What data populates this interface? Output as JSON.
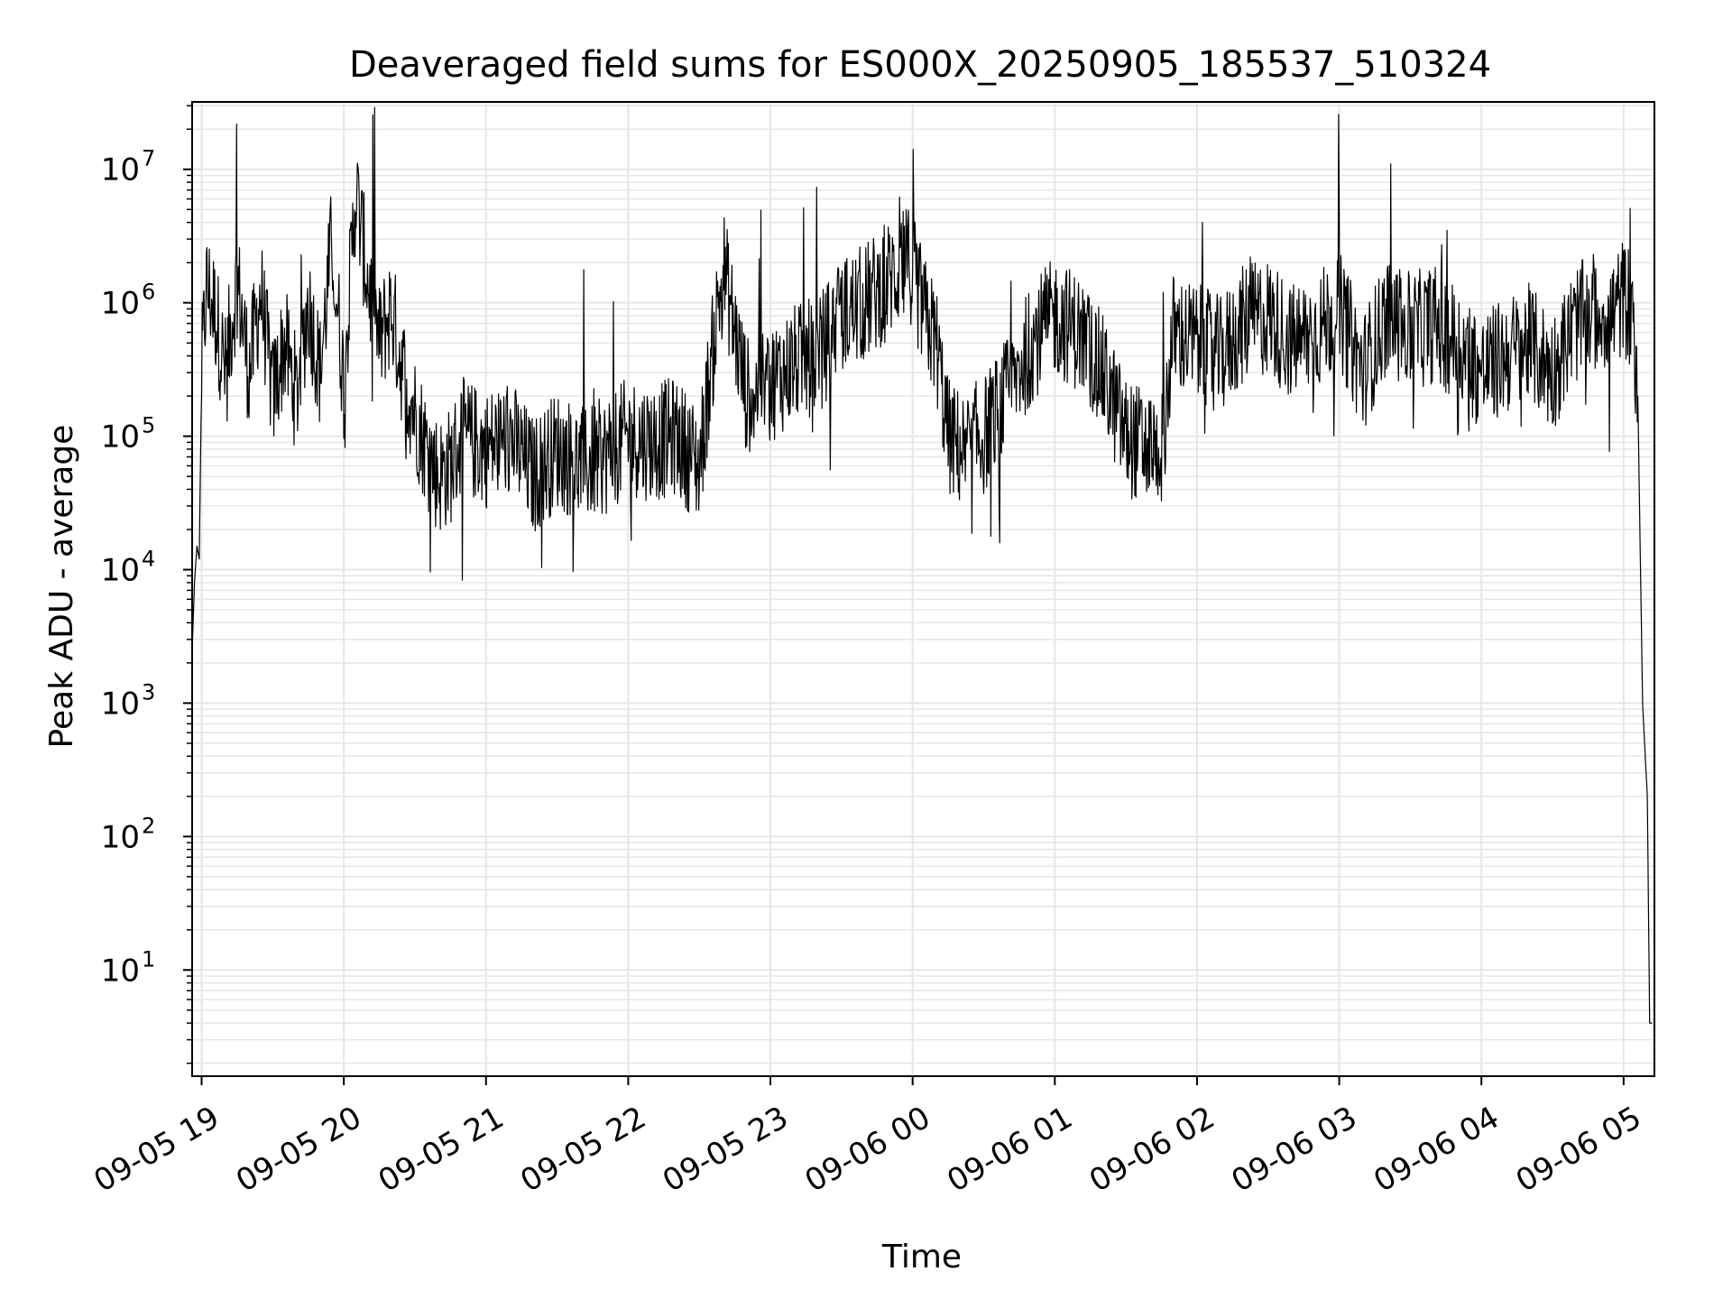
{
  "chart_data": {
    "type": "line",
    "title": "Deaveraged field sums for ES000X_20250905_185537_510324",
    "xlabel": "Time",
    "ylabel": "Peak ADU - average",
    "yscale": "log",
    "grid": true,
    "line_color": "#000000",
    "grid_color": "#e6e6e6",
    "xlim": [
      "2025-09-05 18:56",
      "2025-09-06 05:13"
    ],
    "ylim": [
      1.6,
      32000000
    ],
    "x_ticks": [
      "2025-09-05 19:00",
      "2025-09-05 20:00",
      "2025-09-05 21:00",
      "2025-09-05 22:00",
      "2025-09-05 23:00",
      "2025-09-06 00:00",
      "2025-09-06 01:00",
      "2025-09-06 02:00",
      "2025-09-06 03:00",
      "2025-09-06 04:00",
      "2025-09-06 05:00"
    ],
    "x_tick_labels": [
      "09-05 19",
      "09-05 20",
      "09-05 21",
      "09-05 22",
      "09-05 23",
      "09-06 00",
      "09-06 01",
      "09-06 02",
      "09-06 03",
      "09-06 04",
      "09-06 05"
    ],
    "y_ticks": [
      {
        "value": 10,
        "base": "10",
        "exp": "1"
      },
      {
        "value": 100,
        "base": "10",
        "exp": "2"
      },
      {
        "value": 1000,
        "base": "10",
        "exp": "3"
      },
      {
        "value": 10000,
        "base": "10",
        "exp": "4"
      },
      {
        "value": 100000,
        "base": "10",
        "exp": "5"
      },
      {
        "value": 1000000,
        "base": "10",
        "exp": "6"
      },
      {
        "value": 10000000,
        "base": "10",
        "exp": "7"
      }
    ],
    "series": [
      {
        "x": [
          "2025-09-05 18:56",
          "2025-09-05 18:57",
          "2025-09-05 18:58",
          "2025-09-05 18:59",
          "2025-09-05 19:00",
          "2025-09-05 19:02",
          "2025-09-05 19:04",
          "2025-09-05 19:06",
          "2025-09-05 19:10",
          "2025-09-05 19:15",
          "2025-09-05 19:20",
          "2025-09-05 19:25",
          "2025-09-05 19:30",
          "2025-09-05 19:35",
          "2025-09-05 19:40",
          "2025-09-05 19:45",
          "2025-09-05 19:50",
          "2025-09-05 19:55",
          "2025-09-05 20:00",
          "2025-09-05 20:05",
          "2025-09-05 20:10",
          "2025-09-05 20:15",
          "2025-09-05 20:20",
          "2025-09-05 20:25",
          "2025-09-05 20:30",
          "2025-09-05 20:35",
          "2025-09-05 20:40",
          "2025-09-05 20:45",
          "2025-09-05 20:50",
          "2025-09-05 21:00",
          "2025-09-05 21:10",
          "2025-09-05 21:20",
          "2025-09-05 21:30",
          "2025-09-05 21:40",
          "2025-09-05 21:50",
          "2025-09-05 22:00",
          "2025-09-05 22:10",
          "2025-09-05 22:20",
          "2025-09-05 22:30",
          "2025-09-05 22:40",
          "2025-09-05 22:45",
          "2025-09-05 22:50",
          "2025-09-05 23:00",
          "2025-09-05 23:10",
          "2025-09-05 23:20",
          "2025-09-05 23:30",
          "2025-09-05 23:40",
          "2025-09-05 23:50",
          "2025-09-05 23:59",
          "2025-09-06 00:05",
          "2025-09-06 00:10",
          "2025-09-06 00:15",
          "2025-09-06 00:20",
          "2025-09-06 00:30",
          "2025-09-06 00:40",
          "2025-09-06 00:50",
          "2025-09-06 01:00",
          "2025-09-06 01:10",
          "2025-09-06 01:20",
          "2025-09-06 01:30",
          "2025-09-06 01:40",
          "2025-09-06 01:45",
          "2025-09-06 01:50",
          "2025-09-06 02:00",
          "2025-09-06 02:10",
          "2025-09-06 02:20",
          "2025-09-06 02:30",
          "2025-09-06 02:40",
          "2025-09-06 02:50",
          "2025-09-06 03:00",
          "2025-09-06 03:10",
          "2025-09-06 03:20",
          "2025-09-06 03:30",
          "2025-09-06 03:40",
          "2025-09-06 03:50",
          "2025-09-06 04:00",
          "2025-09-06 04:10",
          "2025-09-06 04:20",
          "2025-09-06 04:30",
          "2025-09-06 04:40",
          "2025-09-06 04:50",
          "2025-09-06 04:55",
          "2025-09-06 05:00",
          "2025-09-06 05:02",
          "2025-09-06 05:04",
          "2025-09-06 05:06",
          "2025-09-06 05:08",
          "2025-09-06 05:10",
          "2025-09-06 05:11",
          "2025-09-06 05:12"
        ],
        "y": [
          2500,
          8000,
          15000,
          12000,
          300000,
          1300000,
          1100000,
          800000,
          300000,
          1500000,
          300000,
          1200000,
          200000,
          500000,
          200000,
          1000000,
          300000,
          3000000,
          250000,
          7000000,
          1500000,
          500000,
          900000,
          300000,
          150000,
          80000,
          50000,
          60000,
          100000,
          80000,
          100000,
          50000,
          80000,
          60000,
          70000,
          100000,
          90000,
          100000,
          60000,
          2000000,
          600000,
          200000,
          250000,
          350000,
          400000,
          800000,
          1000000,
          1500000,
          2000000,
          800000,
          500000,
          100000,
          80000,
          100000,
          200000,
          500000,
          800000,
          600000,
          300000,
          100000,
          80000,
          80000,
          600000,
          500000,
          400000,
          700000,
          800000,
          500000,
          600000,
          900000,
          300000,
          800000,
          600000,
          700000,
          500000,
          300000,
          400000,
          500000,
          300000,
          700000,
          900000,
          800000,
          1100000,
          1000000,
          700000,
          200000,
          1000,
          200,
          4,
          4
        ]
      }
    ]
  }
}
